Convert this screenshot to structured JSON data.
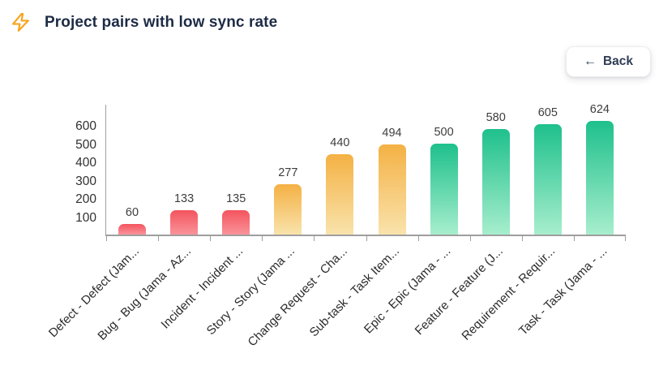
{
  "header": {
    "title": "Project pairs with low sync rate",
    "title_icon": "zap-icon"
  },
  "toolbar": {
    "back_label": "Back",
    "back_arrow": "←",
    "back_icon": "arrow-left-icon"
  },
  "chart_data": {
    "type": "bar",
    "title": "Project pairs with low sync rate",
    "categories": [
      "Defect - Defect (Jam...",
      "Bug - Bug (Jama - Az...",
      "Incident - Incident ...",
      "Story - Story (Jama ...",
      "Change Request - Cha...",
      "Sub-task - Task Item...",
      "Epic - Epic (Jama - ...",
      "Feature - Feature (J...",
      "Requirement - Requir...",
      "Task - Task (Jama - ..."
    ],
    "values": [
      60,
      133,
      135,
      277,
      440,
      494,
      500,
      580,
      605,
      624
    ],
    "bar_color_groups": [
      "red",
      "red",
      "red",
      "orange",
      "orange",
      "orange",
      "green",
      "green",
      "green",
      "green"
    ],
    "y_ticks": [
      100,
      200,
      300,
      400,
      500,
      600
    ],
    "ylim": [
      0,
      720
    ],
    "grid": false,
    "legend": "none",
    "data_labels": true,
    "x_label_rotation": -45
  },
  "colors": {
    "red_top": "#f4545e",
    "red_bottom": "#f9939a",
    "orange_top": "#f4b144",
    "orange_bottom": "#f9e3ac",
    "green_top": "#1ec08c",
    "green_bottom": "#a7eecd",
    "axis": "#9e9e9e",
    "title_text": "#1d2b45",
    "tick_text": "#303030",
    "value_text": "#3d3d3d",
    "zap_icon": "#f7a41f",
    "back_text": "#2e3c55"
  }
}
